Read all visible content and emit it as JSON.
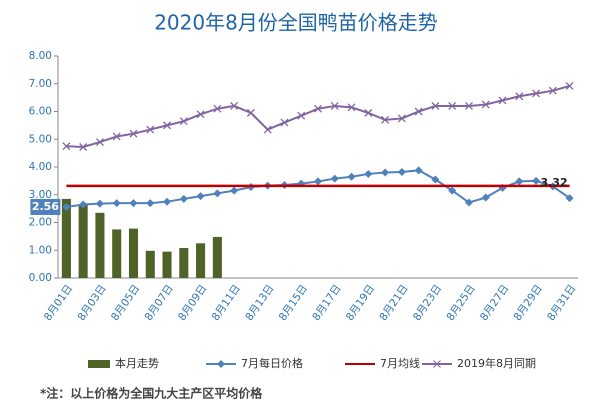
{
  "chart_data": {
    "type": "bar",
    "title": "2020年8月份全国鸭苗价格走势",
    "note": "*注：以上价格为全国九大主产区平均价格",
    "categories": [
      "8月01日",
      null,
      "8月03日",
      null,
      "8月05日",
      null,
      "8月07日",
      null,
      "8月09日",
      null,
      "8月11日",
      null,
      "8月13日",
      null,
      "8月15日",
      null,
      "8月17日",
      null,
      "8月19日",
      null,
      "8月21日",
      null,
      "8月23日",
      null,
      "8月25日",
      null,
      "8月27日",
      null,
      "8月29日",
      null,
      "8月31日"
    ],
    "ylim": [
      0,
      8
    ],
    "yticks": [
      {
        "value": 0,
        "label": "0.00"
      },
      {
        "value": 1,
        "label": "1.00"
      },
      {
        "value": 2,
        "label": "2.00"
      },
      {
        "value": 3,
        "label": "3.00"
      },
      {
        "value": 4,
        "label": "4.00"
      },
      {
        "value": 5,
        "label": "5.00"
      },
      {
        "value": 6,
        "label": "6.00"
      },
      {
        "value": 7,
        "label": "7.00"
      },
      {
        "value": 8,
        "label": "8.00"
      }
    ],
    "grid": false,
    "legend": "bottom",
    "series": [
      {
        "name": "本月走势",
        "type": "bar",
        "color": "#4f6228",
        "values": [
          2.85,
          2.65,
          2.35,
          1.75,
          1.78,
          0.98,
          0.95,
          1.08,
          1.25,
          1.48,
          null,
          null,
          null,
          null,
          null,
          null,
          null,
          null,
          null,
          null,
          null,
          null,
          null,
          null,
          null,
          null,
          null,
          null,
          null,
          null,
          null
        ]
      },
      {
        "name": "7月每日价格",
        "type": "line",
        "marker": "diamond",
        "color": "#4f81bd",
        "values": [
          2.56,
          2.65,
          2.68,
          2.7,
          2.7,
          2.7,
          2.75,
          2.85,
          2.95,
          3.05,
          3.15,
          3.28,
          3.33,
          3.35,
          3.4,
          3.48,
          3.58,
          3.65,
          3.75,
          3.8,
          3.82,
          3.88,
          3.55,
          3.15,
          2.72,
          2.9,
          3.25,
          3.48,
          3.5,
          3.3,
          2.88
        ],
        "value_labels": [
          "2.56",
          null,
          null,
          null,
          null,
          null,
          null,
          null,
          null,
          null,
          null,
          null,
          null,
          null,
          null,
          null,
          null,
          null,
          null,
          null,
          null,
          null,
          null,
          null,
          null,
          null,
          null,
          null,
          null,
          null,
          null
        ]
      },
      {
        "name": "7月均线",
        "type": "line",
        "marker": "none",
        "color": "#c00000",
        "values": [
          3.32,
          3.32,
          3.32,
          3.32,
          3.32,
          3.32,
          3.32,
          3.32,
          3.32,
          3.32,
          3.32,
          3.32,
          3.32,
          3.32,
          3.32,
          3.32,
          3.32,
          3.32,
          3.32,
          3.32,
          3.32,
          3.32,
          3.32,
          3.32,
          3.32,
          3.32,
          3.32,
          3.32,
          3.32,
          3.32,
          3.32
        ],
        "value_labels": [
          null,
          null,
          null,
          null,
          null,
          null,
          null,
          null,
          null,
          null,
          null,
          null,
          null,
          null,
          null,
          null,
          null,
          null,
          null,
          null,
          null,
          null,
          null,
          null,
          null,
          null,
          null,
          null,
          null,
          null,
          "3.32"
        ]
      },
      {
        "name": "2019年8月同期",
        "type": "line",
        "marker": "x",
        "color": "#8064a2",
        "values": [
          4.75,
          4.72,
          4.9,
          5.1,
          5.2,
          5.35,
          5.5,
          5.65,
          5.9,
          6.1,
          6.2,
          5.95,
          5.35,
          5.6,
          5.85,
          6.1,
          6.2,
          6.15,
          5.95,
          5.7,
          5.75,
          6.0,
          6.2,
          6.2,
          6.2,
          6.25,
          6.4,
          6.55,
          6.65,
          6.75,
          6.92
        ]
      }
    ]
  }
}
